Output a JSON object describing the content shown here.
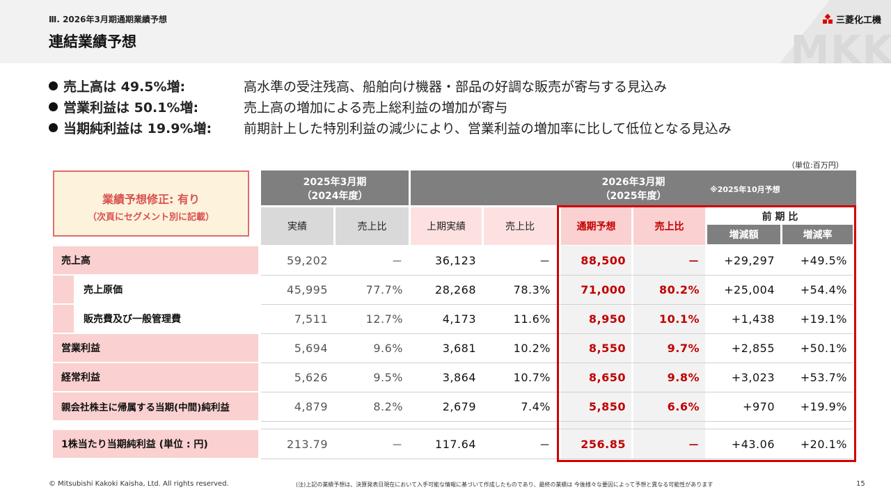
{
  "header": {
    "section_label": "Ⅲ. 2026年3月期通期業績予想",
    "title": "連結業績予想",
    "logo_text": "三菱化工機",
    "watermark": "MKK"
  },
  "bullets": [
    {
      "key": "売上高は 49.5%増:",
      "desc": "高水準の受注残高、船舶向け機器・部品の好調な販売が寄与する見込み"
    },
    {
      "key": "営業利益は 50.1%増:",
      "desc": "売上高の増加による売上総利益の増加が寄与"
    },
    {
      "key": "当期純利益は 19.9%増:",
      "desc": "前期計上した特別利益の減少により、営業利益の増加率に比して低位となる見込み"
    }
  ],
  "unit_note": "（単位:百万円）",
  "revision": {
    "title": "業績予想修正: 有り",
    "note": "（次頁にセグメント別に記載）"
  },
  "table": {
    "group_fy2025": {
      "line1": "2025年3月期",
      "line2": "（2024年度）"
    },
    "group_fy2026": {
      "line1": "2026年3月期",
      "line2": "（2025年度）",
      "note": "※2025年10月予想"
    },
    "col_actual": "実績",
    "col_ratio1": "売上比",
    "col_h1_actual": "上期実績",
    "col_ratio2": "売上比",
    "col_forecast": "通期予想",
    "col_ratio3": "売上比",
    "col_yoy_group": "前 期 比",
    "col_diff": "増減額",
    "col_rate": "増減率",
    "rows": [
      {
        "label": "売上高",
        "v1": "59,202",
        "r1": "－",
        "v2": "36,123",
        "r2": "－",
        "v3": "88,500",
        "r3": "－",
        "d": "+29,297",
        "p": "+49.5%"
      },
      {
        "label": "売上原価",
        "v1": "45,995",
        "r1": "77.7%",
        "v2": "28,268",
        "r2": "78.3%",
        "v3": "71,000",
        "r3": "80.2%",
        "d": "+25,004",
        "p": "+54.4%"
      },
      {
        "label": "販売費及び一般管理費",
        "v1": "7,511",
        "r1": "12.7%",
        "v2": "4,173",
        "r2": "11.6%",
        "v3": "8,950",
        "r3": "10.1%",
        "d": "+1,438",
        "p": "+19.1%"
      },
      {
        "label": "営業利益",
        "v1": "5,694",
        "r1": "9.6%",
        "v2": "3,681",
        "r2": "10.2%",
        "v3": "8,550",
        "r3": "9.7%",
        "d": "+2,855",
        "p": "+50.1%"
      },
      {
        "label": "経常利益",
        "v1": "5,626",
        "r1": "9.5%",
        "v2": "3,864",
        "r2": "10.7%",
        "v3": "8,650",
        "r3": "9.8%",
        "d": "+3,023",
        "p": "+53.7%"
      },
      {
        "label": "親会社株主に帰属する当期(中間)純利益",
        "v1": "4,879",
        "r1": "8.2%",
        "v2": "2,679",
        "r2": "7.4%",
        "v3": "5,850",
        "r3": "6.6%",
        "d": "+970",
        "p": "+19.9%"
      },
      {
        "label": "1株当たり当期純利益 (単位 : 円)",
        "v1": "213.79",
        "r1": "－",
        "v2": "117.64",
        "r2": "－",
        "v3": "256.85",
        "r3": "－",
        "d": "+43.06",
        "p": "+20.1%"
      }
    ]
  },
  "footer": {
    "copyright": "© Mitsubishi Kakoki Kaisha, Ltd. All rights reserved.",
    "note": "(注)上記の業績予想は、決算発表日現在において入手可能な情報に基づいて作成したものであり、最終の業績は 今後様々な要因によって予想と異なる可能性があります",
    "page": "15"
  }
}
